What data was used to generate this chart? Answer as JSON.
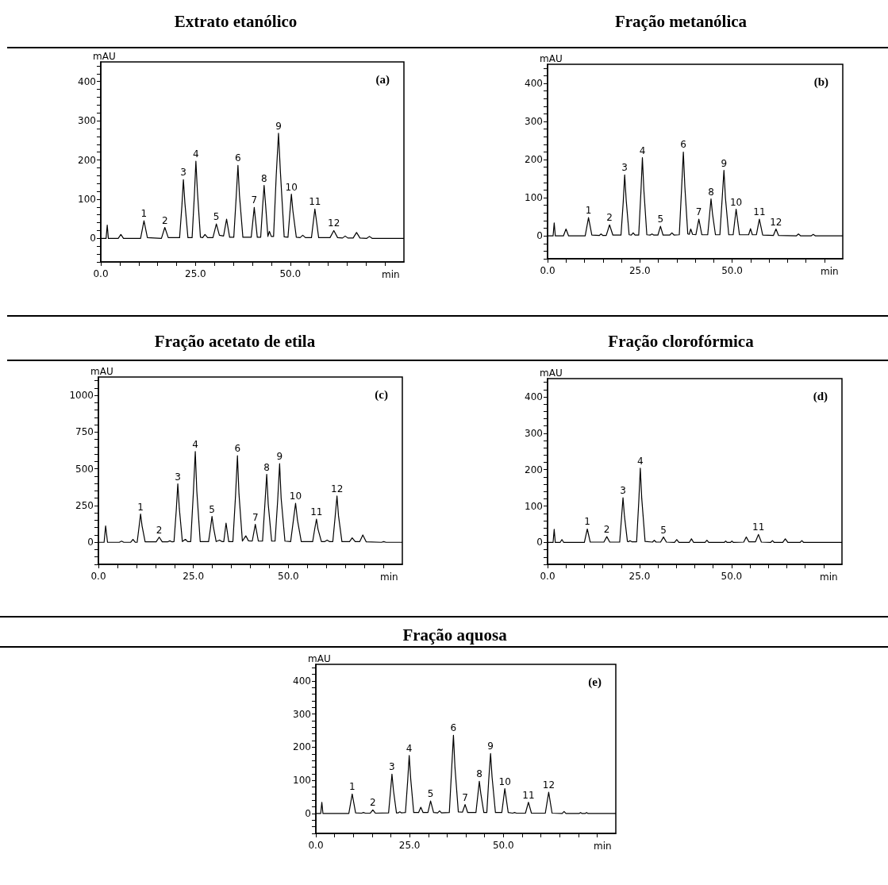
{
  "chart_data": [
    {
      "type": "line",
      "title": "Extrato etanólico",
      "xlabel": "min",
      "ylabel": "mAU",
      "color": "#000000",
      "x": [
        0,
        1.4,
        1.7,
        2.0,
        4.6,
        5.3,
        6.0,
        10.5,
        11.4,
        12.3,
        16.0,
        16.9,
        17.8,
        20.8,
        21.4,
        21.8,
        22.2,
        23.0,
        24.1,
        24.7,
        25.1,
        25.5,
        26.3,
        26.9,
        27.5,
        28.2,
        29.6,
        30.5,
        31.3,
        32.4,
        33.2,
        34.0,
        35.1,
        35.7,
        36.2,
        36.6,
        37.5,
        39.7,
        40.5,
        41.3,
        42.2,
        42.7,
        43.1,
        43.5,
        44.1,
        44.5,
        45.0,
        45.6,
        46.3,
        46.9,
        47.4,
        48.4,
        49.4,
        49.9,
        50.3,
        50.7,
        51.6,
        52.6,
        53.3,
        54.0,
        55.6,
        56.5,
        57.5,
        60.5,
        61.5,
        62.5,
        63.8,
        64.5,
        65.2,
        66.6,
        67.5,
        68.4,
        70.2,
        70.9,
        71.6,
        80
      ],
      "values": [
        0,
        0,
        34,
        0,
        0,
        10,
        0,
        0,
        45,
        2,
        0,
        28,
        2,
        2,
        82,
        150,
        90,
        2,
        2,
        110,
        197,
        120,
        3,
        2,
        10,
        2,
        2,
        37,
        8,
        6,
        49,
        3,
        3,
        100,
        186,
        110,
        3,
        3,
        79,
        3,
        3,
        80,
        135,
        85,
        5,
        18,
        5,
        5,
        160,
        268,
        170,
        4,
        3,
        65,
        113,
        70,
        3,
        2,
        8,
        2,
        2,
        75,
        2,
        2,
        20,
        2,
        1,
        6,
        1,
        1,
        15,
        1,
        0,
        5,
        0,
        0
      ],
      "xlim": [
        0,
        80
      ],
      "ylim": [
        -60,
        450
      ],
      "xticks": [
        {
          "value": 0,
          "label": "0.0"
        },
        {
          "value": 5,
          "label": null
        },
        {
          "value": 10,
          "label": null
        },
        {
          "value": 15,
          "label": null
        },
        {
          "value": 20,
          "label": null
        },
        {
          "value": 25,
          "label": "25.0"
        },
        {
          "value": 30,
          "label": null
        },
        {
          "value": 35,
          "label": null
        },
        {
          "value": 40,
          "label": null
        },
        {
          "value": 45,
          "label": null
        },
        {
          "value": 50,
          "label": "50.0"
        },
        {
          "value": 55,
          "label": null
        },
        {
          "value": 60,
          "label": null
        },
        {
          "value": 65,
          "label": null
        },
        {
          "value": 70,
          "label": null
        },
        {
          "value": 75,
          "label": null
        }
      ],
      "yticks": [
        {
          "value": -60,
          "label": null
        },
        {
          "value": -40,
          "label": null
        },
        {
          "value": -20,
          "label": null
        },
        0,
        {
          "value": 20,
          "label": null
        },
        {
          "value": 40,
          "label": null
        },
        {
          "value": 60,
          "label": null
        },
        {
          "value": 80,
          "label": null
        },
        100,
        {
          "value": 120,
          "label": null
        },
        {
          "value": 140,
          "label": null
        },
        {
          "value": 160,
          "label": null
        },
        {
          "value": 180,
          "label": null
        },
        200,
        {
          "value": 220,
          "label": null
        },
        {
          "value": 240,
          "label": null
        },
        {
          "value": 260,
          "label": null
        },
        {
          "value": 280,
          "label": null
        },
        300,
        {
          "value": 320,
          "label": null
        },
        {
          "value": 340,
          "label": null
        },
        {
          "value": 360,
          "label": null
        },
        {
          "value": 380,
          "label": null
        },
        400,
        {
          "value": 420,
          "label": null
        },
        {
          "value": 440,
          "label": null
        }
      ],
      "annotations": [
        "(a)",
        {
          "text": "1",
          "x": 11.4,
          "y": 45
        },
        {
          "text": "2",
          "x": 16.9,
          "y": 28
        },
        {
          "text": "3",
          "x": 21.8,
          "y": 150
        },
        {
          "text": "4",
          "x": 25.1,
          "y": 197
        },
        {
          "text": "5",
          "x": 30.5,
          "y": 37
        },
        {
          "text": "6",
          "x": 36.2,
          "y": 186
        },
        {
          "text": "7",
          "x": 40.5,
          "y": 79
        },
        {
          "text": "8",
          "x": 43.1,
          "y": 135
        },
        {
          "text": "9",
          "x": 46.9,
          "y": 268
        },
        {
          "text": "10",
          "x": 50.3,
          "y": 113
        },
        {
          "text": "11",
          "x": 56.5,
          "y": 75
        },
        {
          "text": "12",
          "x": 61.5,
          "y": 20
        }
      ]
    },
    {
      "type": "line",
      "title": "Fração metanólica",
      "xlabel": "min",
      "ylabel": "mAU",
      "color": "#000000",
      "x": [
        0,
        1.5,
        1.8,
        2.1,
        4.3,
        5.0,
        5.7,
        10.2,
        11.1,
        12.0,
        14.0,
        14.5,
        15.0,
        15.9,
        16.8,
        17.7,
        19.9,
        20.5,
        20.9,
        21.3,
        22.1,
        22.7,
        23.2,
        23.7,
        24.7,
        25.3,
        25.7,
        26.1,
        26.9,
        27.8,
        28.3,
        28.8,
        29.9,
        30.6,
        31.3,
        33.1,
        33.7,
        34.3,
        35.7,
        36.3,
        36.8,
        37.2,
        38.0,
        38.4,
        38.8,
        39.3,
        40.2,
        41.0,
        41.8,
        43.4,
        43.9,
        44.3,
        44.7,
        45.5,
        46.7,
        47.3,
        47.8,
        48.2,
        49.1,
        50.3,
        51.1,
        52.0,
        54.5,
        55.0,
        55.5,
        56.6,
        57.4,
        58.3,
        61.2,
        61.9,
        62.6,
        67.4,
        68.0,
        68.6,
        71.4,
        72.0,
        72.6,
        80
      ],
      "values": [
        0,
        0,
        34,
        0,
        0,
        18,
        0,
        0,
        48,
        2,
        1,
        5,
        1,
        1,
        29,
        2,
        2,
        88,
        160,
        95,
        3,
        2,
        8,
        2,
        2,
        115,
        205,
        120,
        3,
        2,
        5,
        2,
        2,
        25,
        2,
        2,
        8,
        2,
        3,
        120,
        220,
        130,
        5,
        4,
        18,
        4,
        3,
        44,
        3,
        3,
        55,
        97,
        58,
        3,
        3,
        95,
        172,
        100,
        3,
        3,
        70,
        3,
        3,
        19,
        3,
        3,
        44,
        2,
        1,
        18,
        1,
        0,
        5,
        0,
        0,
        4,
        0,
        0
      ],
      "xlim": [
        0,
        80
      ],
      "ylim": [
        -60,
        450
      ],
      "xticks": [
        {
          "value": 0,
          "label": "0.0"
        },
        {
          "value": 5,
          "label": null
        },
        {
          "value": 10,
          "label": null
        },
        {
          "value": 15,
          "label": null
        },
        {
          "value": 20,
          "label": null
        },
        {
          "value": 25,
          "label": "25.0"
        },
        {
          "value": 30,
          "label": null
        },
        {
          "value": 35,
          "label": null
        },
        {
          "value": 40,
          "label": null
        },
        {
          "value": 45,
          "label": null
        },
        {
          "value": 50,
          "label": "50.0"
        },
        {
          "value": 55,
          "label": null
        },
        {
          "value": 60,
          "label": null
        },
        {
          "value": 65,
          "label": null
        },
        {
          "value": 70,
          "label": null
        },
        {
          "value": 75,
          "label": null
        }
      ],
      "yticks": [
        {
          "value": -60,
          "label": null
        },
        {
          "value": -40,
          "label": null
        },
        {
          "value": -20,
          "label": null
        },
        0,
        {
          "value": 20,
          "label": null
        },
        {
          "value": 40,
          "label": null
        },
        {
          "value": 60,
          "label": null
        },
        {
          "value": 80,
          "label": null
        },
        100,
        {
          "value": 120,
          "label": null
        },
        {
          "value": 140,
          "label": null
        },
        {
          "value": 160,
          "label": null
        },
        {
          "value": 180,
          "label": null
        },
        200,
        {
          "value": 220,
          "label": null
        },
        {
          "value": 240,
          "label": null
        },
        {
          "value": 260,
          "label": null
        },
        {
          "value": 280,
          "label": null
        },
        300,
        {
          "value": 320,
          "label": null
        },
        {
          "value": 340,
          "label": null
        },
        {
          "value": 360,
          "label": null
        },
        {
          "value": 380,
          "label": null
        },
        400,
        {
          "value": 420,
          "label": null
        },
        {
          "value": 440,
          "label": null
        }
      ],
      "annotations": [
        "(b)",
        {
          "text": "1",
          "x": 11.1,
          "y": 48
        },
        {
          "text": "2",
          "x": 16.8,
          "y": 29
        },
        {
          "text": "3",
          "x": 20.9,
          "y": 160
        },
        {
          "text": "4",
          "x": 25.7,
          "y": 205
        },
        {
          "text": "5",
          "x": 30.6,
          "y": 25
        },
        {
          "text": "6",
          "x": 36.8,
          "y": 220
        },
        {
          "text": "7",
          "x": 41.0,
          "y": 44
        },
        {
          "text": "8",
          "x": 44.3,
          "y": 97
        },
        {
          "text": "9",
          "x": 47.8,
          "y": 172
        },
        {
          "text": "10",
          "x": 51.1,
          "y": 70
        },
        {
          "text": "11",
          "x": 57.4,
          "y": 44
        },
        {
          "text": "12",
          "x": 61.9,
          "y": 18
        }
      ]
    },
    {
      "type": "line",
      "title": "Fração acetato de etila",
      "xlabel": "min",
      "ylabel": "mAU",
      "color": "#000000",
      "x": [
        0,
        1.5,
        1.9,
        2.4,
        5.5,
        6.1,
        6.7,
        8.5,
        9.1,
        9.7,
        10.2,
        10.7,
        11.1,
        11.5,
        12.3,
        15.2,
        16.0,
        16.8,
        18.2,
        18.8,
        19.4,
        19.9,
        20.5,
        20.9,
        21.3,
        22.1,
        22.9,
        23.5,
        24.3,
        25.0,
        25.5,
        25.9,
        26.8,
        29.0,
        29.5,
        29.9,
        30.3,
        31.0,
        31.9,
        32.5,
        33.0,
        33.6,
        34.3,
        35.4,
        36.1,
        36.6,
        37.0,
        37.9,
        38.8,
        39.5,
        40.5,
        41.3,
        42.1,
        43.2,
        43.8,
        44.3,
        44.7,
        45.6,
        46.5,
        47.2,
        47.7,
        48.1,
        49.1,
        50.6,
        51.3,
        51.9,
        52.4,
        53.4,
        56.4,
        56.9,
        57.4,
        57.8,
        58.7,
        59.6,
        60.2,
        60.8,
        61.7,
        62.3,
        62.8,
        63.2,
        64.1,
        66.1,
        66.8,
        67.6,
        68.8,
        69.6,
        70.5,
        74.5,
        75.1,
        75.7,
        80
      ],
      "values": [
        0,
        0,
        112,
        0,
        0,
        8,
        0,
        0,
        20,
        0,
        0,
        105,
        193,
        110,
        3,
        3,
        35,
        3,
        3,
        10,
        3,
        5,
        220,
        398,
        230,
        5,
        20,
        5,
        5,
        340,
        618,
        350,
        5,
        5,
        95,
        176,
        100,
        5,
        15,
        5,
        5,
        131,
        5,
        5,
        320,
        589,
        330,
        8,
        44,
        10,
        8,
        122,
        8,
        8,
        250,
        463,
        260,
        8,
        8,
        290,
        535,
        300,
        8,
        5,
        145,
        266,
        150,
        5,
        5,
        85,
        158,
        90,
        5,
        5,
        15,
        5,
        5,
        170,
        315,
        180,
        5,
        5,
        30,
        5,
        5,
        50,
        3,
        0,
        5,
        0,
        0
      ],
      "xlim": [
        0,
        80
      ],
      "ylim": [
        -150,
        1125
      ],
      "xticks": [
        {
          "value": 0,
          "label": "0.0"
        },
        {
          "value": 5,
          "label": null
        },
        {
          "value": 10,
          "label": null
        },
        {
          "value": 15,
          "label": null
        },
        {
          "value": 20,
          "label": null
        },
        {
          "value": 25,
          "label": "25.0"
        },
        {
          "value": 30,
          "label": null
        },
        {
          "value": 35,
          "label": null
        },
        {
          "value": 40,
          "label": null
        },
        {
          "value": 45,
          "label": null
        },
        {
          "value": 50,
          "label": "50.0"
        },
        {
          "value": 55,
          "label": null
        },
        {
          "value": 60,
          "label": null
        },
        {
          "value": 65,
          "label": null
        },
        {
          "value": 70,
          "label": null
        },
        {
          "value": 75,
          "label": null
        }
      ],
      "yticks": [
        {
          "value": -150,
          "label": null
        },
        {
          "value": -100,
          "label": null
        },
        {
          "value": -50,
          "label": null
        },
        0,
        {
          "value": 50,
          "label": null
        },
        {
          "value": 100,
          "label": null
        },
        {
          "value": 150,
          "label": null
        },
        {
          "value": 200,
          "label": null
        },
        250,
        {
          "value": 300,
          "label": null
        },
        {
          "value": 350,
          "label": null
        },
        {
          "value": 400,
          "label": null
        },
        {
          "value": 450,
          "label": null
        },
        500,
        {
          "value": 550,
          "label": null
        },
        {
          "value": 600,
          "label": null
        },
        {
          "value": 650,
          "label": null
        },
        {
          "value": 700,
          "label": null
        },
        750,
        {
          "value": 800,
          "label": null
        },
        {
          "value": 850,
          "label": null
        },
        {
          "value": 900,
          "label": null
        },
        {
          "value": 950,
          "label": null
        },
        1000,
        {
          "value": 1050,
          "label": null
        },
        {
          "value": 1100,
          "label": null
        }
      ],
      "annotations": [
        "(c)",
        {
          "text": "1",
          "x": 11.1,
          "y": 193
        },
        {
          "text": "2",
          "x": 16.0,
          "y": 35
        },
        {
          "text": "3",
          "x": 20.9,
          "y": 398
        },
        {
          "text": "4",
          "x": 25.5,
          "y": 618
        },
        {
          "text": "5",
          "x": 29.9,
          "y": 176
        },
        {
          "text": "6",
          "x": 36.6,
          "y": 589
        },
        {
          "text": "7",
          "x": 41.3,
          "y": 122
        },
        {
          "text": "8",
          "x": 44.3,
          "y": 463
        },
        {
          "text": "9",
          "x": 47.7,
          "y": 535
        },
        {
          "text": "10",
          "x": 51.9,
          "y": 266
        },
        {
          "text": "11",
          "x": 57.4,
          "y": 158
        },
        {
          "text": "12",
          "x": 62.8,
          "y": 315
        }
      ]
    },
    {
      "type": "line",
      "title": "Fração clorofórmica",
      "xlabel": "min",
      "ylabel": "mAU",
      "color": "#000000",
      "x": [
        0,
        1.5,
        1.8,
        2.1,
        3.4,
        3.9,
        4.4,
        10.0,
        10.8,
        11.6,
        15.3,
        16.1,
        16.9,
        19.6,
        20.1,
        20.5,
        20.9,
        21.7,
        22.0,
        22.4,
        22.9,
        24.2,
        24.8,
        25.2,
        25.6,
        26.5,
        28.5,
        29.0,
        29.5,
        30.7,
        31.5,
        32.3,
        34.5,
        35.1,
        35.7,
        38.5,
        39.1,
        39.7,
        42.8,
        43.3,
        43.8,
        48.0,
        48.4,
        48.8,
        49.7,
        50.1,
        50.5,
        53.3,
        54.0,
        54.7,
        56.5,
        57.3,
        58.1,
        60.6,
        61.1,
        61.6,
        63.9,
        64.6,
        65.3,
        68.6,
        69.1,
        69.6,
        80
      ],
      "values": [
        0,
        0,
        36,
        0,
        0,
        8,
        0,
        0,
        37,
        1,
        1,
        16,
        1,
        1,
        68,
        123,
        72,
        3,
        2,
        5,
        2,
        2,
        115,
        204,
        120,
        3,
        1,
        6,
        1,
        1,
        15,
        1,
        0,
        8,
        0,
        0,
        10,
        0,
        0,
        6,
        0,
        0,
        4,
        0,
        0,
        4,
        0,
        1,
        15,
        2,
        2,
        22,
        1,
        0,
        5,
        0,
        0,
        10,
        0,
        0,
        5,
        0,
        0
      ],
      "xlim": [
        0,
        80
      ],
      "ylim": [
        -60,
        450
      ],
      "xticks": [
        {
          "value": 0,
          "label": "0.0"
        },
        {
          "value": 5,
          "label": null
        },
        {
          "value": 10,
          "label": null
        },
        {
          "value": 15,
          "label": null
        },
        {
          "value": 20,
          "label": null
        },
        {
          "value": 25,
          "label": "25.0"
        },
        {
          "value": 30,
          "label": null
        },
        {
          "value": 35,
          "label": null
        },
        {
          "value": 40,
          "label": null
        },
        {
          "value": 45,
          "label": null
        },
        {
          "value": 50,
          "label": "50.0"
        },
        {
          "value": 55,
          "label": null
        },
        {
          "value": 60,
          "label": null
        },
        {
          "value": 65,
          "label": null
        },
        {
          "value": 70,
          "label": null
        },
        {
          "value": 75,
          "label": null
        }
      ],
      "yticks": [
        {
          "value": -60,
          "label": null
        },
        {
          "value": -40,
          "label": null
        },
        {
          "value": -20,
          "label": null
        },
        0,
        {
          "value": 20,
          "label": null
        },
        {
          "value": 40,
          "label": null
        },
        {
          "value": 60,
          "label": null
        },
        {
          "value": 80,
          "label": null
        },
        100,
        {
          "value": 120,
          "label": null
        },
        {
          "value": 140,
          "label": null
        },
        {
          "value": 160,
          "label": null
        },
        {
          "value": 180,
          "label": null
        },
        200,
        {
          "value": 220,
          "label": null
        },
        {
          "value": 240,
          "label": null
        },
        {
          "value": 260,
          "label": null
        },
        {
          "value": 280,
          "label": null
        },
        300,
        {
          "value": 320,
          "label": null
        },
        {
          "value": 340,
          "label": null
        },
        {
          "value": 360,
          "label": null
        },
        {
          "value": 380,
          "label": null
        },
        400,
        {
          "value": 420,
          "label": null
        },
        {
          "value": 440,
          "label": null
        }
      ],
      "annotations": [
        "(d)",
        {
          "text": "1",
          "x": 10.8,
          "y": 37
        },
        {
          "text": "2",
          "x": 16.1,
          "y": 16
        },
        {
          "text": "3",
          "x": 20.5,
          "y": 123
        },
        {
          "text": "4",
          "x": 25.2,
          "y": 204
        },
        {
          "text": "5",
          "x": 31.5,
          "y": 15
        },
        {
          "text": "11",
          "x": 57.3,
          "y": 22
        }
      ]
    },
    {
      "type": "line",
      "title": "Fração aquosa",
      "xlabel": "min",
      "ylabel": "mAU",
      "color": "#000000",
      "x": [
        0,
        1.3,
        1.6,
        1.9,
        8.8,
        9.7,
        10.6,
        12.2,
        12.7,
        13.2,
        14.5,
        15.2,
        15.9,
        19.4,
        19.9,
        20.3,
        20.7,
        21.5,
        22.0,
        22.4,
        22.8,
        23.9,
        24.5,
        24.9,
        25.3,
        26.1,
        27.4,
        28.0,
        28.6,
        29.9,
        30.6,
        31.4,
        32.5,
        33.0,
        33.5,
        35.6,
        36.2,
        36.7,
        37.1,
        38.0,
        39.1,
        39.8,
        40.5,
        42.7,
        43.2,
        43.6,
        44.0,
        44.8,
        45.6,
        46.1,
        46.6,
        47.0,
        47.9,
        49.6,
        50.4,
        51.3,
        52.5,
        53.0,
        53.5,
        55.9,
        56.7,
        57.5,
        61.2,
        62.1,
        63.0,
        65.7,
        66.2,
        66.7,
        70.2,
        70.6,
        71.0,
        71.8,
        72.2,
        72.6,
        80
      ],
      "values": [
        0,
        0,
        34,
        0,
        0,
        59,
        2,
        1,
        3,
        1,
        1,
        11,
        1,
        2,
        65,
        119,
        70,
        2,
        2,
        5,
        2,
        3,
        100,
        175,
        105,
        3,
        3,
        19,
        3,
        3,
        38,
        3,
        2,
        8,
        2,
        3,
        130,
        236,
        140,
        5,
        4,
        27,
        3,
        3,
        55,
        97,
        60,
        3,
        3,
        100,
        181,
        110,
        3,
        3,
        75,
        3,
        1,
        3,
        1,
        1,
        34,
        1,
        1,
        64,
        1,
        0,
        6,
        0,
        0,
        3,
        0,
        0,
        3,
        0,
        0
      ],
      "xlim": [
        0,
        80
      ],
      "ylim": [
        -60,
        450
      ],
      "xticks": [
        {
          "value": 0,
          "label": "0.0"
        },
        {
          "value": 5,
          "label": null
        },
        {
          "value": 10,
          "label": null
        },
        {
          "value": 15,
          "label": null
        },
        {
          "value": 20,
          "label": null
        },
        {
          "value": 25,
          "label": "25.0"
        },
        {
          "value": 30,
          "label": null
        },
        {
          "value": 35,
          "label": null
        },
        {
          "value": 40,
          "label": null
        },
        {
          "value": 45,
          "label": null
        },
        {
          "value": 50,
          "label": "50.0"
        },
        {
          "value": 55,
          "label": null
        },
        {
          "value": 60,
          "label": null
        },
        {
          "value": 65,
          "label": null
        },
        {
          "value": 70,
          "label": null
        },
        {
          "value": 75,
          "label": null
        }
      ],
      "yticks": [
        {
          "value": -60,
          "label": null
        },
        {
          "value": -40,
          "label": null
        },
        {
          "value": -20,
          "label": null
        },
        0,
        {
          "value": 20,
          "label": null
        },
        {
          "value": 40,
          "label": null
        },
        {
          "value": 60,
          "label": null
        },
        {
          "value": 80,
          "label": null
        },
        100,
        {
          "value": 120,
          "label": null
        },
        {
          "value": 140,
          "label": null
        },
        {
          "value": 160,
          "label": null
        },
        {
          "value": 180,
          "label": null
        },
        200,
        {
          "value": 220,
          "label": null
        },
        {
          "value": 240,
          "label": null
        },
        {
          "value": 260,
          "label": null
        },
        {
          "value": 280,
          "label": null
        },
        300,
        {
          "value": 320,
          "label": null
        },
        {
          "value": 340,
          "label": null
        },
        {
          "value": 360,
          "label": null
        },
        {
          "value": 380,
          "label": null
        },
        400,
        {
          "value": 420,
          "label": null
        },
        {
          "value": 440,
          "label": null
        }
      ],
      "annotations": [
        "(e)",
        {
          "text": "1",
          "x": 9.7,
          "y": 59
        },
        {
          "text": "2",
          "x": 15.2,
          "y": 11
        },
        {
          "text": "3",
          "x": 20.3,
          "y": 119
        },
        {
          "text": "4",
          "x": 24.9,
          "y": 175
        },
        {
          "text": "5",
          "x": 30.6,
          "y": 38
        },
        {
          "text": "6",
          "x": 36.7,
          "y": 236
        },
        {
          "text": "7",
          "x": 39.8,
          "y": 27
        },
        {
          "text": "8",
          "x": 43.6,
          "y": 97
        },
        {
          "text": "9",
          "x": 46.6,
          "y": 181
        },
        {
          "text": "10",
          "x": 50.4,
          "y": 75
        },
        {
          "text": "11",
          "x": 56.7,
          "y": 34
        },
        {
          "text": "12",
          "x": 62.1,
          "y": 64
        }
      ]
    }
  ]
}
